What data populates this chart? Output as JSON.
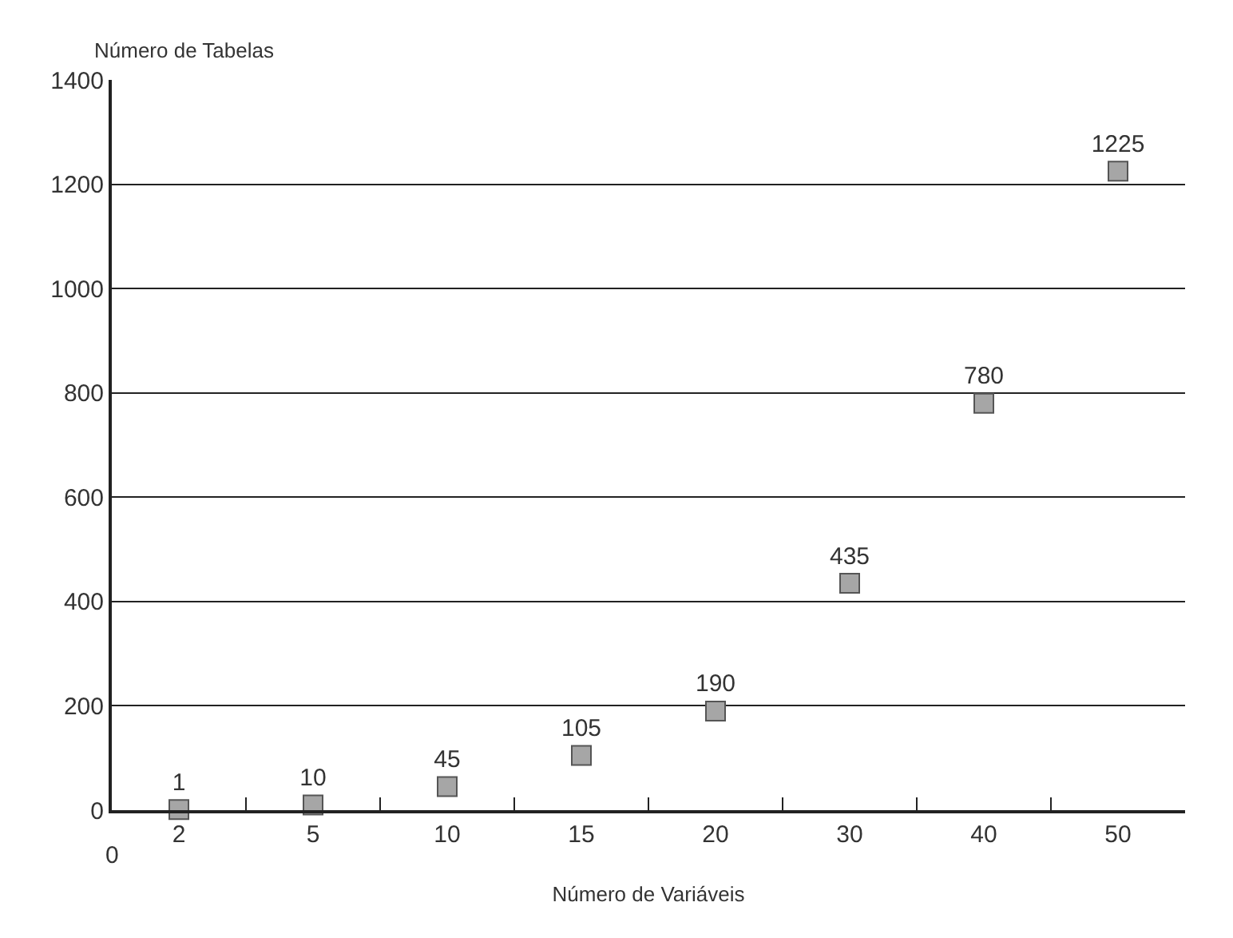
{
  "chart_data": {
    "type": "scatter",
    "ylabel": "Número de Tabelas",
    "xlabel": "Número de Variáveis",
    "categories": [
      "2",
      "5",
      "10",
      "15",
      "20",
      "30",
      "40",
      "50"
    ],
    "values": [
      1,
      10,
      45,
      105,
      190,
      435,
      780,
      1225
    ],
    "color": "#a6a6a6",
    "marker": "square",
    "data_labels": true,
    "ylim": [
      0,
      1400
    ],
    "yticks": [
      0,
      200,
      400,
      600,
      800,
      1000,
      1200,
      1400
    ],
    "grid": "y",
    "annotations": [
      "0"
    ]
  }
}
